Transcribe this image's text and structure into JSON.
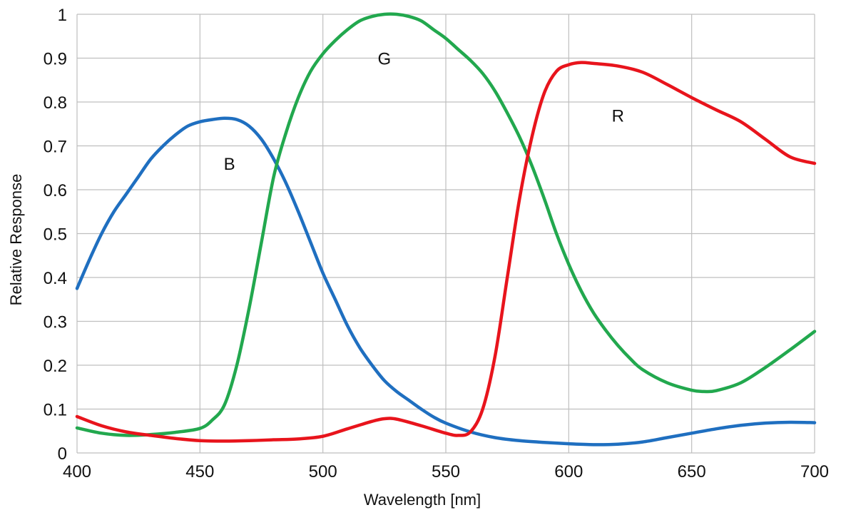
{
  "chart_data": {
    "type": "line",
    "title": "",
    "xlabel": "Wavelength [nm]",
    "ylabel": "Relative Response",
    "xlim": [
      400,
      700
    ],
    "ylim": [
      0,
      1
    ],
    "x_ticks": [
      400,
      450,
      500,
      550,
      600,
      650,
      700
    ],
    "x_tick_labels": [
      "400",
      "450",
      "500",
      "550",
      "600",
      "650",
      "700"
    ],
    "y_ticks": [
      0,
      0.1,
      0.2,
      0.3,
      0.4,
      0.5,
      0.6,
      0.7,
      0.8,
      0.9,
      1
    ],
    "y_tick_labels": [
      "0",
      "0.1",
      "0.2",
      "0.3",
      "0.4",
      "0.5",
      "0.6",
      "0.7",
      "0.8",
      "0.9",
      "1"
    ],
    "grid": true,
    "series": [
      {
        "name": "B",
        "color": "#1f6fc0",
        "points": [
          [
            400,
            0.375
          ],
          [
            405,
            0.44
          ],
          [
            410,
            0.5
          ],
          [
            415,
            0.55
          ],
          [
            420,
            0.59
          ],
          [
            425,
            0.63
          ],
          [
            430,
            0.67
          ],
          [
            435,
            0.7
          ],
          [
            440,
            0.725
          ],
          [
            445,
            0.745
          ],
          [
            450,
            0.755
          ],
          [
            455,
            0.76
          ],
          [
            460,
            0.763
          ],
          [
            465,
            0.76
          ],
          [
            470,
            0.745
          ],
          [
            475,
            0.715
          ],
          [
            480,
            0.67
          ],
          [
            485,
            0.615
          ],
          [
            490,
            0.55
          ],
          [
            495,
            0.48
          ],
          [
            500,
            0.41
          ],
          [
            505,
            0.35
          ],
          [
            510,
            0.29
          ],
          [
            515,
            0.24
          ],
          [
            520,
            0.2
          ],
          [
            525,
            0.165
          ],
          [
            530,
            0.14
          ],
          [
            535,
            0.12
          ],
          [
            540,
            0.1
          ],
          [
            545,
            0.082
          ],
          [
            550,
            0.068
          ],
          [
            560,
            0.048
          ],
          [
            570,
            0.035
          ],
          [
            580,
            0.028
          ],
          [
            590,
            0.024
          ],
          [
            600,
            0.021
          ],
          [
            610,
            0.019
          ],
          [
            620,
            0.02
          ],
          [
            630,
            0.025
          ],
          [
            640,
            0.035
          ],
          [
            650,
            0.045
          ],
          [
            660,
            0.055
          ],
          [
            670,
            0.063
          ],
          [
            680,
            0.068
          ],
          [
            690,
            0.07
          ],
          [
            700,
            0.069
          ]
        ]
      },
      {
        "name": "G",
        "color": "#22a84e",
        "points": [
          [
            400,
            0.057
          ],
          [
            410,
            0.045
          ],
          [
            420,
            0.04
          ],
          [
            430,
            0.042
          ],
          [
            440,
            0.047
          ],
          [
            450,
            0.056
          ],
          [
            455,
            0.075
          ],
          [
            460,
            0.11
          ],
          [
            465,
            0.2
          ],
          [
            470,
            0.33
          ],
          [
            475,
            0.48
          ],
          [
            480,
            0.63
          ],
          [
            485,
            0.73
          ],
          [
            490,
            0.81
          ],
          [
            495,
            0.87
          ],
          [
            500,
            0.91
          ],
          [
            505,
            0.94
          ],
          [
            510,
            0.965
          ],
          [
            515,
            0.985
          ],
          [
            520,
            0.995
          ],
          [
            525,
            1.0
          ],
          [
            530,
            1.0
          ],
          [
            535,
            0.995
          ],
          [
            540,
            0.985
          ],
          [
            545,
            0.965
          ],
          [
            550,
            0.945
          ],
          [
            555,
            0.92
          ],
          [
            560,
            0.895
          ],
          [
            565,
            0.865
          ],
          [
            570,
            0.825
          ],
          [
            575,
            0.775
          ],
          [
            580,
            0.72
          ],
          [
            585,
            0.655
          ],
          [
            590,
            0.58
          ],
          [
            595,
            0.5
          ],
          [
            600,
            0.43
          ],
          [
            605,
            0.37
          ],
          [
            610,
            0.32
          ],
          [
            615,
            0.28
          ],
          [
            620,
            0.245
          ],
          [
            625,
            0.215
          ],
          [
            630,
            0.19
          ],
          [
            640,
            0.16
          ],
          [
            650,
            0.143
          ],
          [
            655,
            0.14
          ],
          [
            660,
            0.142
          ],
          [
            670,
            0.16
          ],
          [
            680,
            0.195
          ],
          [
            690,
            0.235
          ],
          [
            700,
            0.277
          ]
        ]
      },
      {
        "name": "R",
        "color": "#e8141c",
        "points": [
          [
            400,
            0.083
          ],
          [
            410,
            0.062
          ],
          [
            420,
            0.048
          ],
          [
            430,
            0.04
          ],
          [
            440,
            0.033
          ],
          [
            450,
            0.028
          ],
          [
            460,
            0.027
          ],
          [
            470,
            0.028
          ],
          [
            480,
            0.03
          ],
          [
            490,
            0.032
          ],
          [
            500,
            0.038
          ],
          [
            510,
            0.055
          ],
          [
            520,
            0.072
          ],
          [
            525,
            0.078
          ],
          [
            530,
            0.077
          ],
          [
            540,
            0.062
          ],
          [
            550,
            0.045
          ],
          [
            555,
            0.04
          ],
          [
            560,
            0.048
          ],
          [
            565,
            0.1
          ],
          [
            570,
            0.22
          ],
          [
            575,
            0.4
          ],
          [
            580,
            0.58
          ],
          [
            585,
            0.72
          ],
          [
            590,
            0.82
          ],
          [
            595,
            0.87
          ],
          [
            600,
            0.885
          ],
          [
            605,
            0.89
          ],
          [
            610,
            0.888
          ],
          [
            620,
            0.882
          ],
          [
            630,
            0.868
          ],
          [
            640,
            0.84
          ],
          [
            650,
            0.81
          ],
          [
            660,
            0.782
          ],
          [
            670,
            0.755
          ],
          [
            680,
            0.715
          ],
          [
            690,
            0.675
          ],
          [
            700,
            0.66
          ]
        ]
      }
    ],
    "annotations": [
      {
        "text": "B",
        "x": 462,
        "y": 0.66
      },
      {
        "text": "G",
        "x": 525,
        "y": 0.9
      },
      {
        "text": "R",
        "x": 620,
        "y": 0.77
      }
    ]
  }
}
